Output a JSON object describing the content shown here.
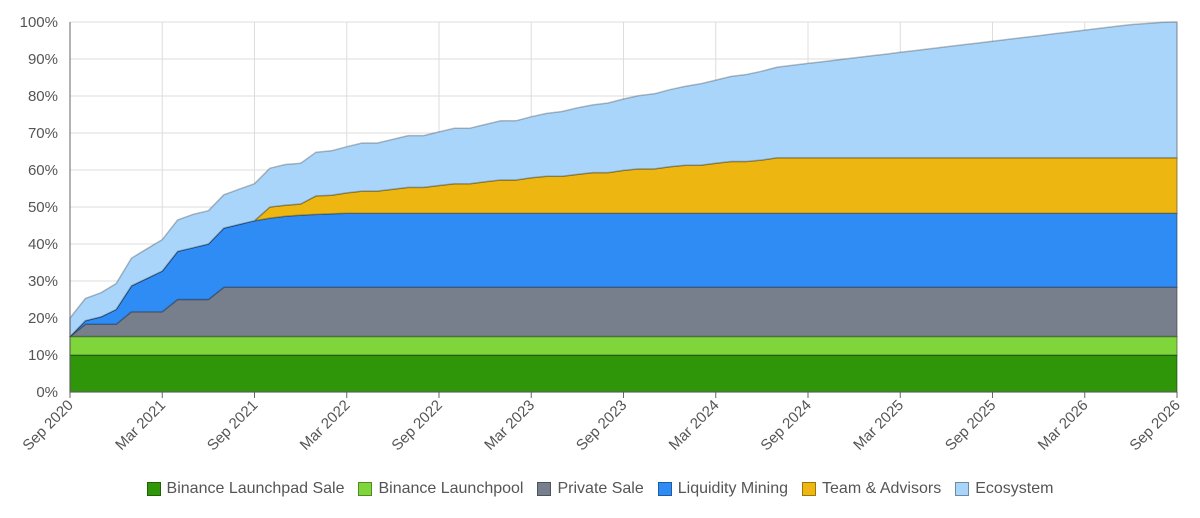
{
  "chart_data": {
    "type": "area",
    "stacked": true,
    "title": "",
    "xlabel": "",
    "ylabel": "",
    "ylim": [
      0,
      100
    ],
    "y_ticks": [
      "0%",
      "10%",
      "20%",
      "30%",
      "40%",
      "50%",
      "60%",
      "70%",
      "80%",
      "90%",
      "100%"
    ],
    "x_ticks": [
      "Sep 2020",
      "Mar 2021",
      "Sep 2021",
      "Mar 2022",
      "Sep 2022",
      "Mar 2023",
      "Sep 2023",
      "Mar 2024",
      "Sep 2024",
      "Mar 2025",
      "Sep 2025",
      "Mar 2026",
      "Sep 2026"
    ],
    "x_tick_months": [
      0,
      6,
      12,
      18,
      24,
      30,
      36,
      42,
      48,
      54,
      60,
      66,
      72
    ],
    "x_months": [
      0,
      1,
      2,
      3,
      4,
      5,
      6,
      7,
      8,
      9,
      10,
      11,
      12,
      13,
      14,
      15,
      16,
      17,
      18,
      19,
      20,
      21,
      22,
      23,
      24,
      25,
      26,
      27,
      28,
      29,
      30,
      31,
      32,
      33,
      34,
      35,
      36,
      37,
      38,
      39,
      40,
      41,
      42,
      43,
      44,
      45,
      46,
      47,
      48,
      49,
      50,
      51,
      52,
      53,
      54,
      55,
      56,
      57,
      58,
      59,
      60,
      61,
      62,
      63,
      64,
      65,
      66,
      67,
      68,
      69,
      70,
      71,
      72
    ],
    "grid": true,
    "legend_position": "bottom",
    "series": [
      {
        "name": "Binance Launchpad Sale",
        "color": "#2f960a",
        "values": [
          10,
          10,
          10,
          10,
          10,
          10,
          10,
          10,
          10,
          10,
          10,
          10,
          10,
          10,
          10,
          10,
          10,
          10,
          10,
          10,
          10,
          10,
          10,
          10,
          10,
          10,
          10,
          10,
          10,
          10,
          10,
          10,
          10,
          10,
          10,
          10,
          10,
          10,
          10,
          10,
          10,
          10,
          10,
          10,
          10,
          10,
          10,
          10,
          10,
          10,
          10,
          10,
          10,
          10,
          10,
          10,
          10,
          10,
          10,
          10,
          10,
          10,
          10,
          10,
          10,
          10,
          10,
          10,
          10,
          10,
          10,
          10,
          10
        ]
      },
      {
        "name": "Binance Launchpool",
        "color": "#7fd63b",
        "values": [
          5,
          5,
          5,
          5,
          5,
          5,
          5,
          5,
          5,
          5,
          5,
          5,
          5,
          5,
          5,
          5,
          5,
          5,
          5,
          5,
          5,
          5,
          5,
          5,
          5,
          5,
          5,
          5,
          5,
          5,
          5,
          5,
          5,
          5,
          5,
          5,
          5,
          5,
          5,
          5,
          5,
          5,
          5,
          5,
          5,
          5,
          5,
          5,
          5,
          5,
          5,
          5,
          5,
          5,
          5,
          5,
          5,
          5,
          5,
          5,
          5,
          5,
          5,
          5,
          5,
          5,
          5,
          5,
          5,
          5,
          5,
          5,
          5
        ]
      },
      {
        "name": "Private Sale",
        "color": "#787f8c",
        "values": [
          0,
          3.3,
          3.3,
          3.3,
          6.7,
          6.7,
          6.7,
          10,
          10,
          10,
          13.3,
          13.3,
          13.3,
          13.3,
          13.3,
          13.3,
          13.3,
          13.3,
          13.3,
          13.3,
          13.3,
          13.3,
          13.3,
          13.3,
          13.3,
          13.3,
          13.3,
          13.3,
          13.3,
          13.3,
          13.3,
          13.3,
          13.3,
          13.3,
          13.3,
          13.3,
          13.3,
          13.3,
          13.3,
          13.3,
          13.3,
          13.3,
          13.3,
          13.3,
          13.3,
          13.3,
          13.3,
          13.3,
          13.3,
          13.3,
          13.3,
          13.3,
          13.3,
          13.3,
          13.3,
          13.3,
          13.3,
          13.3,
          13.3,
          13.3,
          13.3,
          13.3,
          13.3,
          13.3,
          13.3,
          13.3,
          13.3,
          13.3,
          13.3,
          13.3,
          13.3,
          13.3,
          13.3
        ]
      },
      {
        "name": "Liquidity Mining",
        "color": "#2f8cf5",
        "values": [
          0,
          1,
          2,
          4,
          7,
          9,
          11,
          13,
          14,
          15,
          16,
          17,
          18,
          18.7,
          19.2,
          19.5,
          19.7,
          19.9,
          20,
          20,
          20,
          20,
          20,
          20,
          20,
          20,
          20,
          20,
          20,
          20,
          20,
          20,
          20,
          20,
          20,
          20,
          20,
          20,
          20,
          20,
          20,
          20,
          20,
          20,
          20,
          20,
          20,
          20,
          20,
          20,
          20,
          20,
          20,
          20,
          20,
          20,
          20,
          20,
          20,
          20,
          20,
          20,
          20,
          20,
          20,
          20,
          20,
          20,
          20,
          20,
          20,
          20,
          20
        ]
      },
      {
        "name": "Team & Advisors",
        "color": "#eeb610",
        "values": [
          0,
          0,
          0,
          0,
          0,
          0,
          0,
          0,
          0,
          0,
          0,
          0,
          0,
          3,
          3,
          3,
          5,
          5,
          5.5,
          6,
          6,
          6.5,
          7,
          7,
          7.5,
          8,
          8,
          8.5,
          9,
          9,
          9.6,
          10,
          10,
          10.5,
          11,
          11,
          11.6,
          12,
          12,
          12.6,
          13,
          13,
          13.5,
          14,
          14,
          14.4,
          15,
          15,
          15,
          15,
          15,
          15,
          15,
          15,
          15,
          15,
          15,
          15,
          15,
          15,
          15,
          15,
          15,
          15,
          15,
          15,
          15,
          15,
          15,
          15,
          15,
          15,
          15
        ]
      },
      {
        "name": "Ecosystem",
        "color": "#a9d5fb",
        "values": [
          5,
          6,
          6.5,
          7,
          7.5,
          8,
          8.5,
          8.5,
          9,
          9,
          9,
          9.5,
          10,
          10.5,
          11,
          11,
          11.8,
          12,
          12.5,
          13,
          13,
          13.5,
          14,
          14,
          14.5,
          15,
          15,
          15.5,
          16,
          16,
          16.5,
          17,
          17.5,
          18,
          18.3,
          18.8,
          19.3,
          19.8,
          20.3,
          20.8,
          21.3,
          22,
          22.5,
          23,
          23.5,
          24,
          24.5,
          25,
          25.5,
          26,
          26.5,
          27,
          27.5,
          28,
          28.5,
          29,
          29.5,
          30,
          30.5,
          31,
          31.5,
          32,
          32.5,
          33,
          33.5,
          34,
          34.5,
          35,
          35.5,
          36,
          36.3,
          36.6,
          36.7
        ]
      }
    ]
  }
}
